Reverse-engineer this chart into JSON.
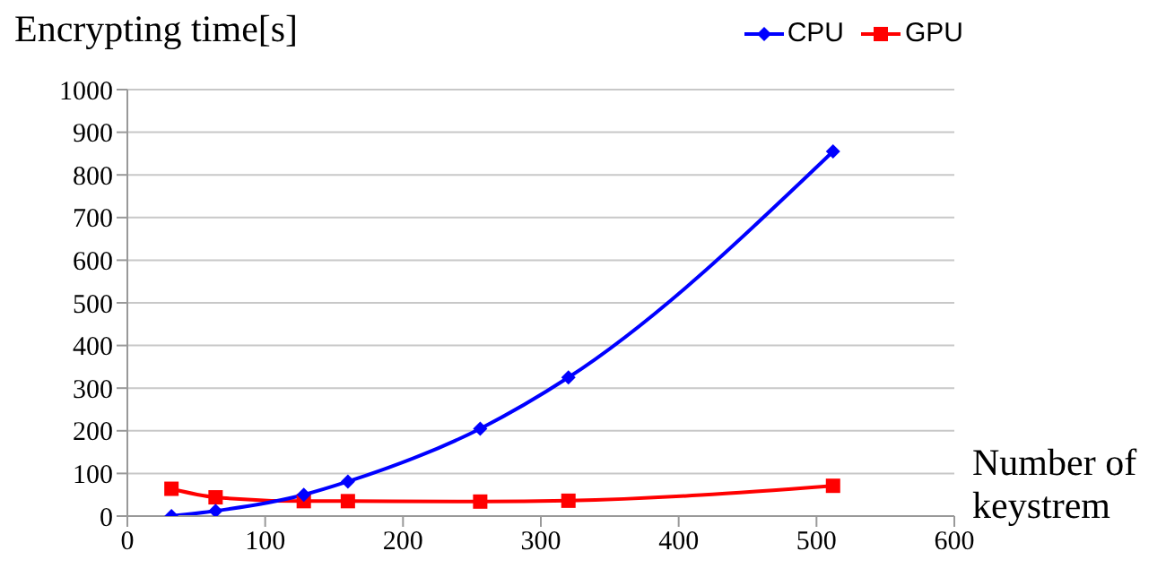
{
  "chart_data": {
    "type": "line",
    "ylabel": "Encrypting time[s]",
    "xlabel": "Number of keystrem",
    "x": [
      32,
      64,
      128,
      160,
      256,
      320,
      512
    ],
    "series": [
      {
        "name": "CPU",
        "color": "#0000ff",
        "marker": "diamond",
        "values": [
          0,
          12,
          50,
          81,
          205,
          325,
          855
        ]
      },
      {
        "name": "GPU",
        "color": "#ff0000",
        "marker": "square",
        "values": [
          64,
          44,
          35,
          35,
          34,
          36,
          71
        ]
      }
    ],
    "xlim": [
      0,
      600
    ],
    "xticks": [
      0,
      100,
      200,
      300,
      400,
      500,
      600
    ],
    "ylim": [
      0,
      1000
    ],
    "yticks": [
      0,
      100,
      200,
      300,
      400,
      500,
      600,
      700,
      800,
      900,
      1000
    ],
    "grid": "y",
    "legend": "top right",
    "line_style": "solid"
  }
}
